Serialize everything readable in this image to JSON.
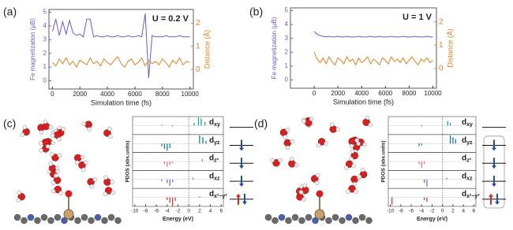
{
  "panel_labels": [
    "(a)",
    "(b)",
    "(c)",
    "(d)"
  ],
  "chart_data": [
    {
      "type": "line",
      "annotation": "U = 0.2 V",
      "xlabel": "Simulation time (fs)",
      "ylabel": "Fe magnetization (μB)",
      "y2label": "Distance (Å)",
      "x": [
        0,
        250,
        500,
        750,
        1000,
        1250,
        1500,
        1750,
        2000,
        2250,
        2500,
        2750,
        3000,
        3250,
        3500,
        3750,
        4000,
        4250,
        4500,
        4750,
        5000,
        5250,
        5500,
        5750,
        6000,
        6250,
        6500,
        6750,
        7000,
        7250,
        7500,
        7750,
        8000,
        8250,
        8500,
        8750,
        9000,
        9250,
        9500,
        9750,
        10000
      ],
      "xlim": [
        -250,
        10250
      ],
      "xticks": [
        0,
        2000,
        4000,
        6000,
        8000,
        10000
      ],
      "ylim": [
        -0.6,
        5.2
      ],
      "yticks": [
        0,
        1,
        2,
        3,
        4,
        5
      ],
      "y2lim": [
        -0.85,
        2.6
      ],
      "y2ticks": [
        0,
        1,
        2
      ],
      "series": [
        {
          "color": "#6a5acd",
          "values": [
            3.6,
            4.5,
            3.3,
            4.3,
            3.4,
            4.4,
            3.5,
            3.3,
            3.4,
            3.2,
            4.5,
            4.5,
            3.2,
            3.3,
            3.2,
            3.2,
            3.3,
            3.2,
            3.2,
            3.3,
            3.2,
            3.2,
            3.3,
            3.2,
            3.2,
            3.3,
            3.2,
            4.9,
            0.2,
            3.3,
            3.2,
            3.2,
            3.2,
            3.3,
            3.2,
            3.2,
            3.2,
            3.3,
            3.2,
            3.2,
            3.2
          ]
        },
        {
          "color": "#e0801f",
          "axis": "y2",
          "values": [
            0.3,
            0.15,
            0.45,
            0.25,
            0.5,
            0.2,
            0.35,
            0.1,
            0.4,
            0.3,
            0.2,
            0.5,
            0.25,
            0.35,
            0.15,
            0.45,
            0.3,
            0.2,
            0.4,
            0.55,
            0.25,
            0.1,
            0.35,
            0.45,
            0.2,
            0.3,
            0.5,
            0.15,
            0.4,
            0.25,
            0.35,
            0.2,
            0.45,
            0.3,
            0.1,
            0.4,
            0.25,
            0.5,
            0.2,
            0.35,
            0.3
          ]
        }
      ]
    },
    {
      "type": "line",
      "annotation": "U = 1 V",
      "xlabel": "Simulation time (fs)",
      "ylabel": "Fe magnetization (μB)",
      "y2label": "Distance (Å)",
      "x": [
        0,
        250,
        500,
        750,
        1000,
        1250,
        1500,
        1750,
        2000,
        2250,
        2500,
        2750,
        3000,
        3250,
        3500,
        3750,
        4000,
        4250,
        4500,
        4750,
        5000,
        5250,
        5500,
        5750,
        6000,
        6250,
        6500,
        6750,
        7000,
        7250,
        7500,
        7750,
        8000,
        8250,
        8500,
        8750,
        9000,
        9250,
        9500,
        9750,
        10000
      ],
      "xlim": [
        -2000,
        10300
      ],
      "xticks": [
        0,
        2000,
        4000,
        6000,
        8000,
        10000
      ],
      "ylim": [
        -0.6,
        5.2
      ],
      "yticks": [
        0,
        1,
        2,
        3,
        4,
        5
      ],
      "y2lim": [
        -0.85,
        2.6
      ],
      "y2ticks": [
        0,
        1,
        2
      ],
      "series": [
        {
          "color": "#6a5acd",
          "values": [
            3.5,
            3.3,
            3.2,
            3.15,
            3.1,
            3.15,
            3.1,
            3.1,
            3.15,
            3.1,
            3.1,
            3.15,
            3.1,
            3.1,
            3.1,
            3.15,
            3.1,
            3.1,
            3.1,
            3.15,
            3.1,
            3.1,
            3.15,
            3.1,
            3.1,
            3.1,
            3.15,
            3.1,
            3.1,
            3.1,
            3.15,
            3.1,
            3.1,
            3.1,
            3.15,
            3.1,
            3.1,
            3.1,
            3.15,
            3.1,
            3.1
          ]
        },
        {
          "color": "#e0801f",
          "axis": "y2",
          "values": [
            0.7,
            0.4,
            0.25,
            0.45,
            0.2,
            0.5,
            0.3,
            0.15,
            0.45,
            0.35,
            0.2,
            0.5,
            0.3,
            0.4,
            0.15,
            0.45,
            0.25,
            0.35,
            0.5,
            0.2,
            0.4,
            0.3,
            0.15,
            0.45,
            0.35,
            0.2,
            0.5,
            0.3,
            0.4,
            0.25,
            0.45,
            0.2,
            0.35,
            0.5,
            0.3,
            0.15,
            0.4,
            0.3,
            0.45,
            0.25,
            0.35
          ]
        }
      ]
    },
    {
      "type": "pdos",
      "xlabel": "Energy (eV)",
      "ylabel": "PDOS (abs.units)",
      "xlim": [
        -10.4,
        6.4
      ],
      "xticks": [
        -10,
        -8,
        -6,
        -4,
        -2,
        0,
        2,
        4,
        6
      ],
      "ylim": [
        -1,
        1
      ],
      "series": [
        {
          "name": "dxy",
          "color": "#2a9d9d",
          "x": [
            -5,
            -3,
            1.0,
            1.8,
            2.3,
            3.0
          ],
          "values": [
            0.1,
            -0.1,
            0.3,
            0.9,
            0.8,
            0.4
          ]
        },
        {
          "name": "dyz",
          "color": "#137f8a",
          "x": [
            -5,
            -4.5,
            -4,
            -3.5,
            2.0,
            2.6,
            3.2
          ],
          "values": [
            -0.3,
            -0.6,
            -0.8,
            -0.5,
            0.9,
            0.7,
            0.3
          ]
        },
        {
          "name": "dz²",
          "color": "#e07a7a",
          "x": [
            -4.5,
            -4,
            -3.5,
            -3,
            2.5
          ],
          "values": [
            -0.3,
            -0.6,
            -0.4,
            -0.2,
            0.3
          ]
        },
        {
          "name": "dxz",
          "color": "#7a6fc4",
          "x": [
            -5,
            -4,
            -3.5,
            -3,
            0.8
          ],
          "values": [
            -0.2,
            -0.4,
            -0.7,
            -0.3,
            0.2
          ]
        },
        {
          "name": "dx²−y²",
          "color": "#d63a3a",
          "x": [
            -4,
            -3.5,
            -3,
            -2.5,
            2.0
          ],
          "values": [
            -0.3,
            -0.6,
            -1.0,
            -0.4,
            0.1
          ]
        }
      ]
    },
    {
      "type": "pdos",
      "xlabel": "Energy (eV)",
      "ylabel": "PDOS (abs.units)",
      "xlim": [
        -10.4,
        6.4
      ],
      "xticks": [
        -10,
        -8,
        -6,
        -4,
        -2,
        0,
        2,
        4,
        6
      ],
      "ylim": [
        -1,
        1
      ],
      "series": [
        {
          "name": "dxy",
          "color": "#2a9d9d",
          "x": [
            -4,
            1.0,
            1.5
          ],
          "values": [
            -0.1,
            0.5,
            0.3
          ]
        },
        {
          "name": "dyz",
          "color": "#137f8a",
          "x": [
            -4.5,
            -4,
            1.5,
            2.0,
            2.5
          ],
          "values": [
            -0.3,
            -0.2,
            0.9,
            0.7,
            0.5
          ]
        },
        {
          "name": "dz²",
          "color": "#e07a7a",
          "x": [
            -4.5,
            -4,
            -3.5
          ],
          "values": [
            -0.3,
            -0.7,
            -0.3
          ]
        },
        {
          "name": "dxz",
          "color": "#7a6fc4",
          "x": [
            -3.5,
            -3,
            0.8
          ],
          "values": [
            -0.4,
            -0.8,
            0.2
          ]
        },
        {
          "name": "dx²−y²",
          "color": "#d63a3a",
          "x": [
            -9.7,
            -3.5,
            -3
          ],
          "values": [
            -0.8,
            -0.3,
            -0.5
          ]
        }
      ]
    }
  ]
}
